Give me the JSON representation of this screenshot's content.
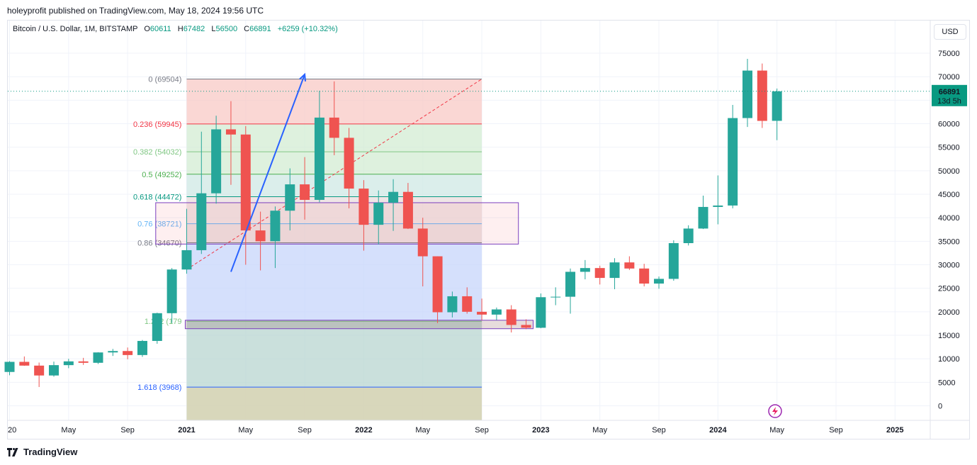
{
  "header": {
    "published_text": "holeyprofit published on TradingView.com, May 18, 2024 19:56 UTC"
  },
  "legend": {
    "symbol": "Bitcoin / U.S. Dollar, 1M, BITSTAMP",
    "open_label": "O",
    "open": "60611",
    "high_label": "H",
    "high": "67482",
    "low_label": "L",
    "low": "56500",
    "close_label": "C",
    "close": "66891",
    "change": "+6259 (+10.32%)"
  },
  "currency": "USD",
  "price_label": {
    "value": "66891",
    "countdown": "13d 5h"
  },
  "footer": {
    "brand": "TradingView"
  },
  "colors": {
    "up": "#26a69a",
    "down": "#ef5350",
    "trend_line": "#2962ff",
    "last_price": "#089981"
  },
  "chart_data": {
    "type": "candlestick",
    "interval": "1M",
    "ylim": [
      -2000,
      77000
    ],
    "y_ticks": [
      0,
      5000,
      10000,
      15000,
      20000,
      25000,
      30000,
      35000,
      40000,
      45000,
      50000,
      55000,
      60000,
      65000,
      70000,
      75000
    ],
    "x_labels": [
      {
        "text": "20",
        "m": 0
      },
      {
        "text": "May",
        "m": 4
      },
      {
        "text": "Sep",
        "m": 8
      },
      {
        "text": "2021",
        "m": 12
      },
      {
        "text": "May",
        "m": 16
      },
      {
        "text": "Sep",
        "m": 20
      },
      {
        "text": "2022",
        "m": 24
      },
      {
        "text": "May",
        "m": 28
      },
      {
        "text": "Sep",
        "m": 32
      },
      {
        "text": "2023",
        "m": 36
      },
      {
        "text": "May",
        "m": 40
      },
      {
        "text": "Sep",
        "m": 44
      },
      {
        "text": "2024",
        "m": 48
      },
      {
        "text": "May",
        "m": 52
      },
      {
        "text": "Sep",
        "m": 56
      },
      {
        "text": "2025",
        "m": 60
      }
    ],
    "candles": [
      {
        "m": 0,
        "o": 7200,
        "h": 9500,
        "l": 6500,
        "c": 9350
      },
      {
        "m": 1,
        "o": 9350,
        "h": 10500,
        "l": 8500,
        "c": 8550
      },
      {
        "m": 2,
        "o": 8550,
        "h": 9200,
        "l": 4000,
        "c": 6450
      },
      {
        "m": 3,
        "o": 6450,
        "h": 9400,
        "l": 6200,
        "c": 8650
      },
      {
        "m": 4,
        "o": 8650,
        "h": 10000,
        "l": 8000,
        "c": 9450
      },
      {
        "m": 5,
        "o": 9450,
        "h": 10200,
        "l": 8700,
        "c": 9150
      },
      {
        "m": 6,
        "o": 9150,
        "h": 11400,
        "l": 8900,
        "c": 11350
      },
      {
        "m": 7,
        "o": 11350,
        "h": 12100,
        "l": 10600,
        "c": 11650
      },
      {
        "m": 8,
        "o": 11650,
        "h": 12400,
        "l": 9900,
        "c": 10800
      },
      {
        "m": 9,
        "o": 10800,
        "h": 14000,
        "l": 10400,
        "c": 13800
      },
      {
        "m": 10,
        "o": 13800,
        "h": 19800,
        "l": 13200,
        "c": 19700
      },
      {
        "m": 11,
        "o": 19700,
        "h": 29300,
        "l": 17600,
        "c": 28990
      },
      {
        "m": 12,
        "o": 28990,
        "h": 41900,
        "l": 28100,
        "c": 33100
      },
      {
        "m": 13,
        "o": 33100,
        "h": 58300,
        "l": 32300,
        "c": 45200
      },
      {
        "m": 14,
        "o": 45200,
        "h": 61700,
        "l": 43000,
        "c": 58800
      },
      {
        "m": 15,
        "o": 58800,
        "h": 64800,
        "l": 47000,
        "c": 57700
      },
      {
        "m": 16,
        "o": 57700,
        "h": 59500,
        "l": 30000,
        "c": 37300
      },
      {
        "m": 17,
        "o": 37300,
        "h": 41300,
        "l": 28800,
        "c": 35000
      },
      {
        "m": 18,
        "o": 35000,
        "h": 42400,
        "l": 29300,
        "c": 41500
      },
      {
        "m": 19,
        "o": 41500,
        "h": 50500,
        "l": 37300,
        "c": 47100
      },
      {
        "m": 20,
        "o": 47100,
        "h": 52900,
        "l": 39600,
        "c": 43800
      },
      {
        "m": 21,
        "o": 43800,
        "h": 67000,
        "l": 43300,
        "c": 61300
      },
      {
        "m": 22,
        "o": 61300,
        "h": 69000,
        "l": 53300,
        "c": 57000
      },
      {
        "m": 23,
        "o": 57000,
        "h": 59100,
        "l": 42000,
        "c": 46200
      },
      {
        "m": 24,
        "o": 46200,
        "h": 48000,
        "l": 33000,
        "c": 38500
      },
      {
        "m": 25,
        "o": 38500,
        "h": 45800,
        "l": 34300,
        "c": 43200
      },
      {
        "m": 26,
        "o": 43200,
        "h": 48200,
        "l": 37200,
        "c": 45500
      },
      {
        "m": 27,
        "o": 45500,
        "h": 47400,
        "l": 37600,
        "c": 37700
      },
      {
        "m": 28,
        "o": 37700,
        "h": 40000,
        "l": 25400,
        "c": 31800
      },
      {
        "m": 29,
        "o": 31800,
        "h": 31800,
        "l": 17600,
        "c": 19900
      },
      {
        "m": 30,
        "o": 19900,
        "h": 24300,
        "l": 18800,
        "c": 23300
      },
      {
        "m": 31,
        "o": 23300,
        "h": 25200,
        "l": 19600,
        "c": 20000
      },
      {
        "m": 32,
        "o": 20000,
        "h": 22800,
        "l": 18200,
        "c": 19400
      },
      {
        "m": 33,
        "o": 19400,
        "h": 20900,
        "l": 18200,
        "c": 20500
      },
      {
        "m": 34,
        "o": 20500,
        "h": 21400,
        "l": 15600,
        "c": 17200
      },
      {
        "m": 35,
        "o": 17200,
        "h": 18400,
        "l": 16300,
        "c": 16600
      },
      {
        "m": 36,
        "o": 16600,
        "h": 23900,
        "l": 16500,
        "c": 23100
      },
      {
        "m": 37,
        "o": 23100,
        "h": 25200,
        "l": 21400,
        "c": 23200
      },
      {
        "m": 38,
        "o": 23200,
        "h": 29200,
        "l": 19600,
        "c": 28500
      },
      {
        "m": 39,
        "o": 28500,
        "h": 31000,
        "l": 26900,
        "c": 29300
      },
      {
        "m": 40,
        "o": 29300,
        "h": 29800,
        "l": 25800,
        "c": 27200
      },
      {
        "m": 41,
        "o": 27200,
        "h": 31400,
        "l": 24800,
        "c": 30500
      },
      {
        "m": 42,
        "o": 30500,
        "h": 31800,
        "l": 28900,
        "c": 29200
      },
      {
        "m": 43,
        "o": 29200,
        "h": 30200,
        "l": 25400,
        "c": 26000
      },
      {
        "m": 44,
        "o": 26000,
        "h": 27500,
        "l": 24900,
        "c": 27000
      },
      {
        "m": 45,
        "o": 27000,
        "h": 35200,
        "l": 26600,
        "c": 34600
      },
      {
        "m": 46,
        "o": 34600,
        "h": 38400,
        "l": 34100,
        "c": 37700
      },
      {
        "m": 47,
        "o": 37700,
        "h": 44700,
        "l": 37600,
        "c": 42300
      },
      {
        "m": 48,
        "o": 42300,
        "h": 49000,
        "l": 38600,
        "c": 42600
      },
      {
        "m": 49,
        "o": 42600,
        "h": 64000,
        "l": 42000,
        "c": 61200
      },
      {
        "m": 50,
        "o": 61200,
        "h": 73800,
        "l": 59300,
        "c": 71300
      },
      {
        "m": 51,
        "o": 71300,
        "h": 72800,
        "l": 59100,
        "c": 60600
      },
      {
        "m": 52,
        "o": 60611,
        "h": 67482,
        "l": 56500,
        "c": 66891
      }
    ],
    "fib_retracement": {
      "start": {
        "m": 12,
        "price": 29000
      },
      "end": {
        "m": 32,
        "price": 69504
      },
      "levels": [
        {
          "label": "0",
          "price": 69504
        },
        {
          "label": "0.236",
          "price": 59945
        },
        {
          "label": "0.382",
          "price": 54032
        },
        {
          "label": "0.5",
          "price": 49252
        },
        {
          "label": "0.618",
          "price": 44472
        },
        {
          "label": "0.76",
          "price": 38721
        },
        {
          "label": "0.86",
          "price": 34670
        },
        {
          "label": "1.272",
          "price": 17985
        },
        {
          "label": "1.618",
          "price": 3968
        }
      ],
      "visible_level_texts": [
        "0 (69504)",
        "0.236 (59945)",
        "0.382 (54032)",
        "0.5 (49252)",
        "0.618 (44472)",
        "0.76 (38721)",
        "0.86 (34670)",
        "1.272 (179",
        "1.618 (3968)"
      ]
    },
    "zones": [
      {
        "m_from": 10,
        "m_to": 34,
        "top": 43200,
        "bottom": 34400
      },
      {
        "m_from": 12,
        "m_to": 35,
        "top": 18200,
        "bottom": 16400
      }
    ],
    "trend_arrow": {
      "from": {
        "m": 15,
        "price": 28500
      },
      "to": {
        "m": 20,
        "price": 70500
      }
    },
    "last_price": 66891
  }
}
